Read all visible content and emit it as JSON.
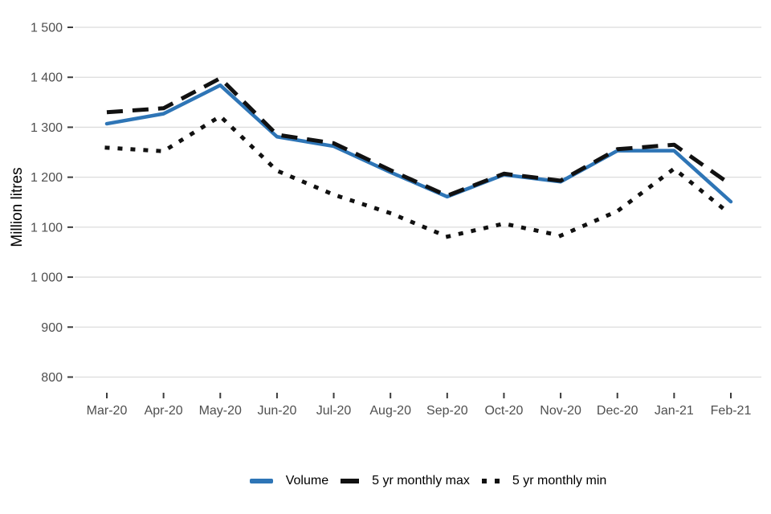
{
  "chart_data": {
    "type": "line",
    "title": "",
    "xlabel": "",
    "ylabel": "Million litres",
    "ylim": [
      800,
      1500
    ],
    "ytick_step": 100,
    "ytick_labels": [
      "800",
      "900",
      "1 000",
      "1 100",
      "1 200",
      "1 300",
      "1 400",
      "1 500"
    ],
    "grid": "horizontal",
    "legend_position": "bottom-center",
    "categories": [
      "Mar-20",
      "Apr-20",
      "May-20",
      "Jun-20",
      "Jul-20",
      "Aug-20",
      "Sep-20",
      "Oct-20",
      "Nov-20",
      "Dec-20",
      "Jan-21",
      "Feb-21"
    ],
    "series": [
      {
        "name": "Volume",
        "style": "solid",
        "color": "#2E75B6",
        "values": [
          1307,
          1327,
          1384,
          1281,
          1262,
          1210,
          1161,
          1205,
          1191,
          1253,
          1253,
          1151
        ]
      },
      {
        "name": "5 yr monthly max",
        "style": "dashed",
        "color": "#111111",
        "values": [
          1330,
          1338,
          1398,
          1285,
          1268,
          1214,
          1163,
          1207,
          1193,
          1256,
          1265,
          1185
        ]
      },
      {
        "name": "5 yr monthly min",
        "style": "dotted",
        "color": "#111111",
        "values": [
          1259,
          1252,
          1322,
          1213,
          1165,
          1128,
          1081,
          1107,
          1083,
          1132,
          1217,
          1125
        ]
      }
    ]
  },
  "colors": {
    "volume_line": "#2E75B6",
    "minmax_line": "#111111",
    "gridline": "#dcdcdc",
    "tick_mark": "#3d3d3d",
    "tick_label": "#4f4f4f",
    "background": "#ffffff"
  }
}
